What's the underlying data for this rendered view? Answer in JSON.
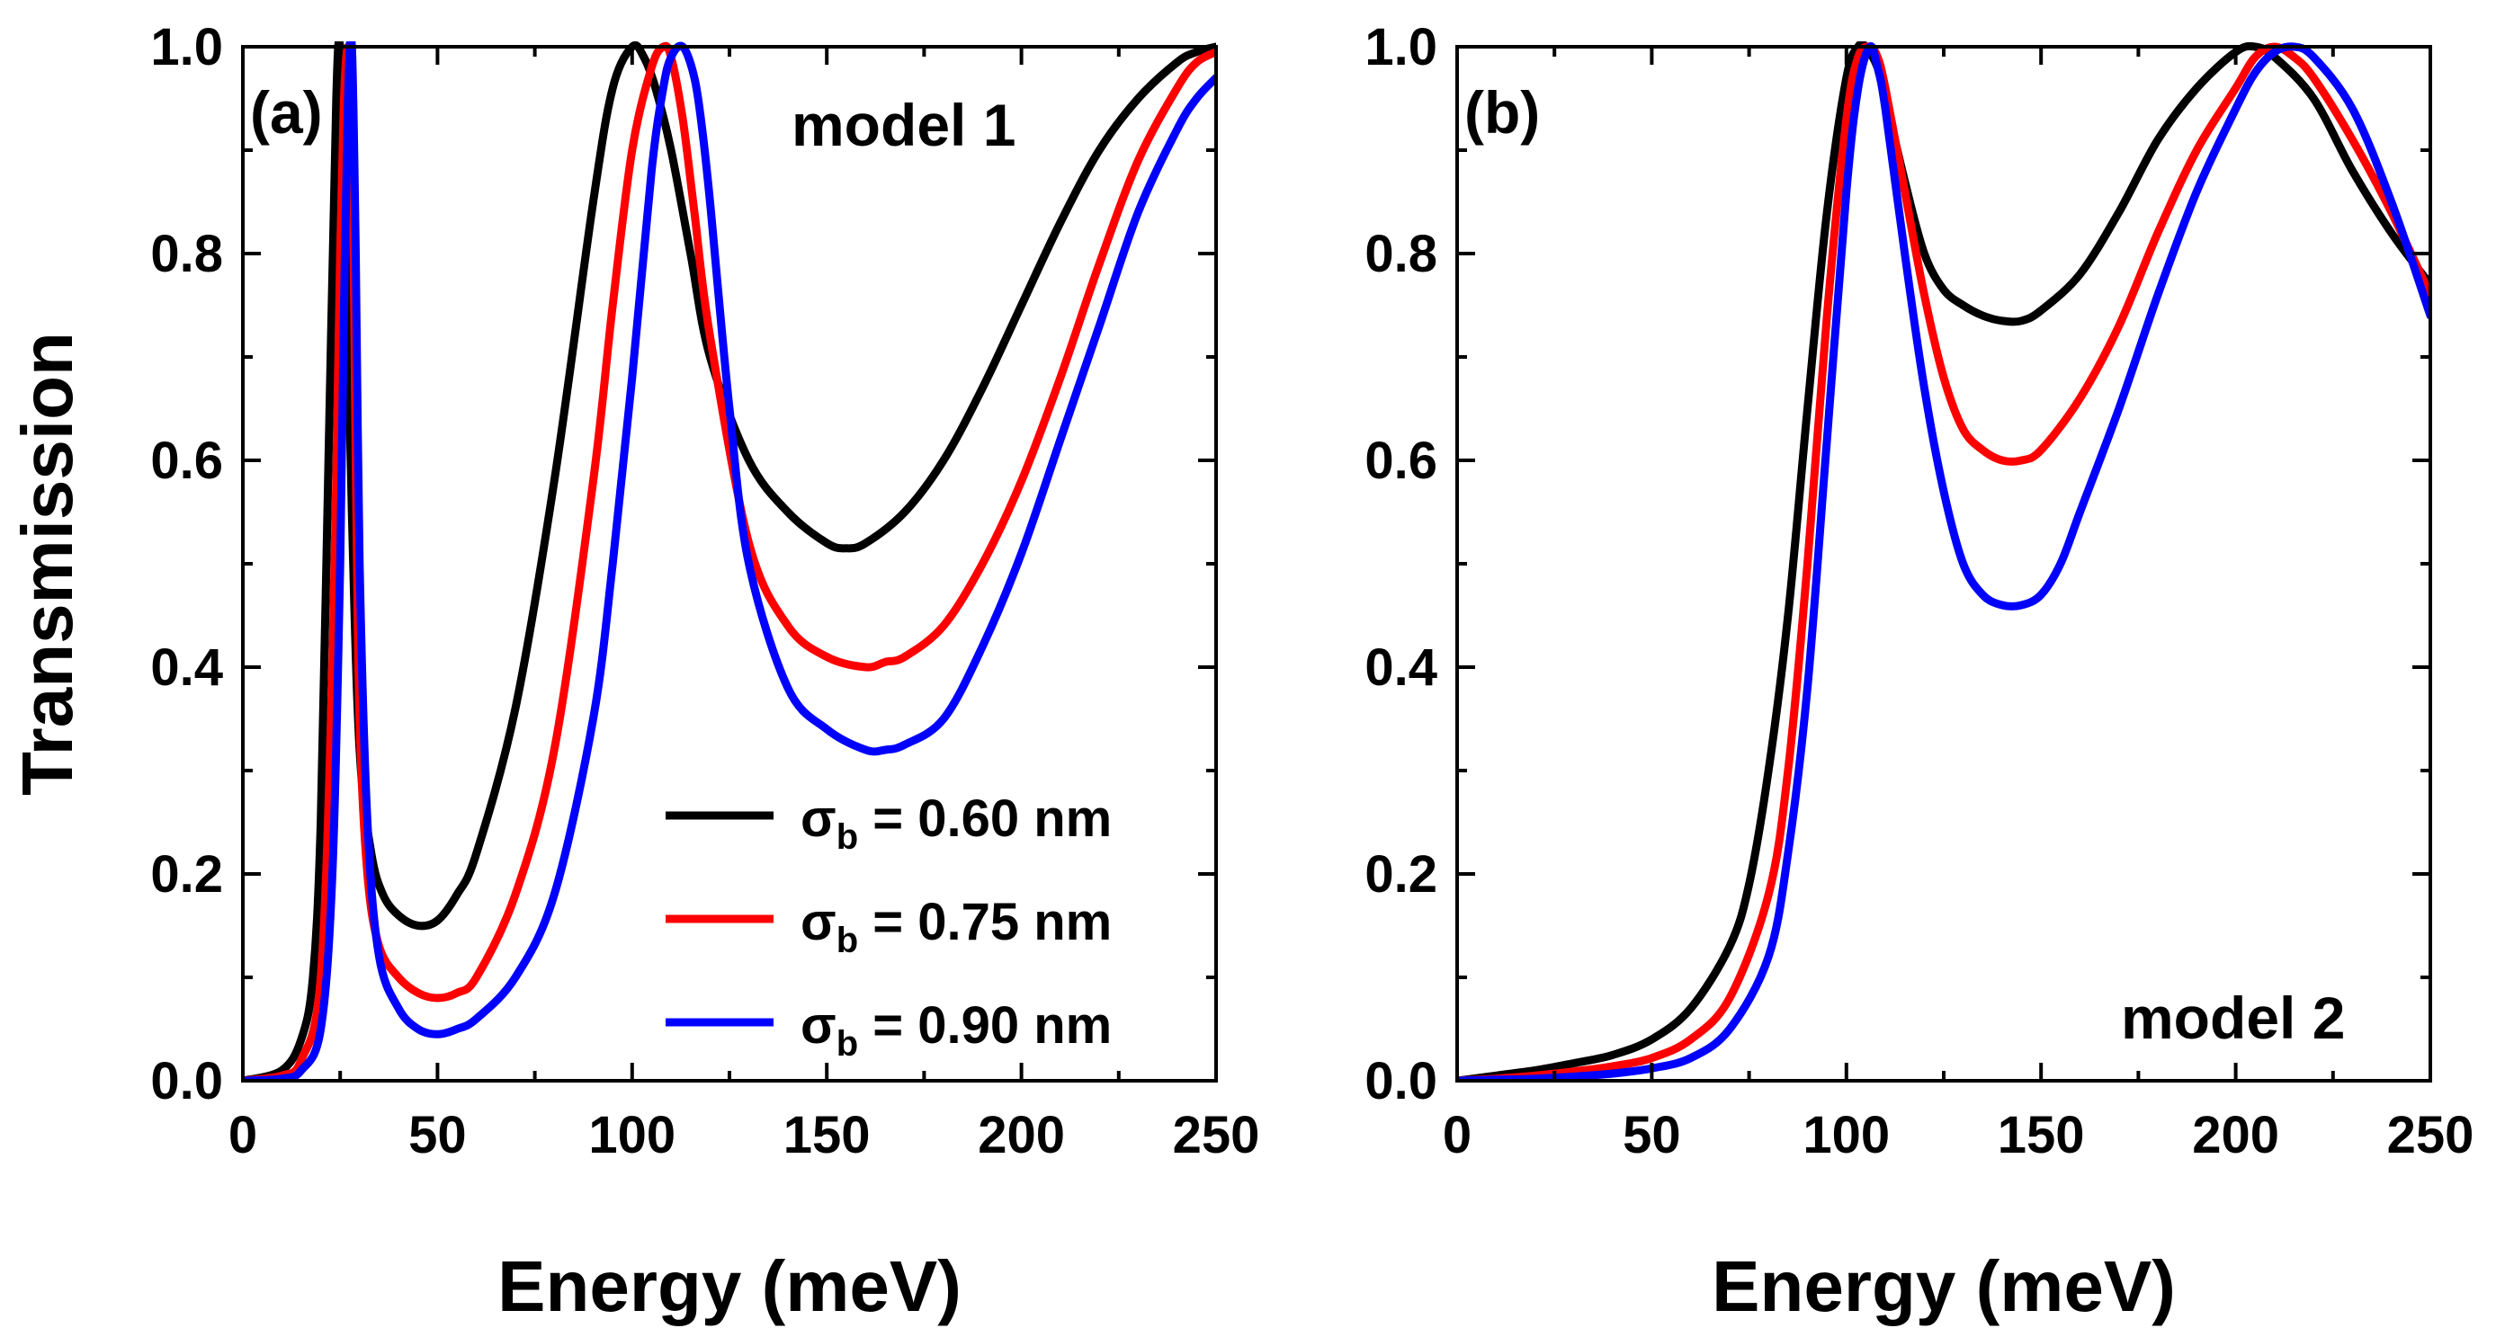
{
  "chart_data": [
    {
      "type": "line",
      "panel_label": "(a)",
      "annotation": "model 1",
      "xlabel": "Energy (meV)",
      "ylabel": "Transmission",
      "xlim": [
        0,
        250
      ],
      "ylim": [
        0,
        1.0
      ],
      "x_ticks": [
        "0",
        "50",
        "100",
        "150",
        "200",
        "250"
      ],
      "y_ticks": [
        "0.0",
        "0.2",
        "0.4",
        "0.6",
        "0.8",
        "1.0"
      ],
      "legend": {
        "placement": "lower-right",
        "entries": [
          {
            "symbol": "σ",
            "sub": "b",
            "text": " = 0.60 nm"
          },
          {
            "symbol": "σ",
            "sub": "b",
            "text": " = 0.75 nm"
          },
          {
            "symbol": "σ",
            "sub": "b",
            "text": " = 0.90 nm"
          }
        ]
      },
      "series": [
        {
          "name": "σb = 0.60 nm",
          "color": "#000000",
          "x": [
            0,
            10,
            15,
            18,
            20,
            22,
            24,
            25,
            26,
            28,
            30,
            33,
            36,
            40,
            45,
            50,
            55,
            60,
            70,
            80,
            90,
            95,
            100,
            103,
            106,
            110,
            115,
            120,
            130,
            140,
            150,
            155,
            160,
            170,
            180,
            190,
            200,
            210,
            220,
            230,
            240,
            245,
            250
          ],
          "y": [
            0,
            0.01,
            0.04,
            0.1,
            0.25,
            0.6,
            0.95,
            1.0,
            0.9,
            0.55,
            0.32,
            0.22,
            0.18,
            0.16,
            0.15,
            0.155,
            0.18,
            0.22,
            0.36,
            0.58,
            0.85,
            0.96,
            1.0,
            0.99,
            0.96,
            0.9,
            0.8,
            0.7,
            0.6,
            0.55,
            0.52,
            0.515,
            0.52,
            0.55,
            0.6,
            0.67,
            0.75,
            0.83,
            0.9,
            0.95,
            0.985,
            0.995,
            1.0
          ]
        },
        {
          "name": "σb = 0.75 nm",
          "color": "#ff0000",
          "x": [
            0,
            10,
            15,
            20,
            23,
            25,
            26,
            27,
            28,
            29,
            30,
            32,
            35,
            40,
            45,
            50,
            55,
            60,
            70,
            80,
            90,
            95,
            100,
            105,
            108,
            110,
            113,
            116,
            120,
            130,
            140,
            150,
            160,
            165,
            170,
            180,
            190,
            200,
            210,
            220,
            230,
            240,
            245,
            250
          ],
          "y": [
            0,
            0.005,
            0.02,
            0.1,
            0.4,
            0.8,
            0.95,
            1.0,
            0.95,
            0.6,
            0.35,
            0.2,
            0.13,
            0.1,
            0.085,
            0.08,
            0.085,
            0.1,
            0.18,
            0.32,
            0.58,
            0.75,
            0.9,
            0.98,
            1.0,
            0.99,
            0.93,
            0.84,
            0.72,
            0.52,
            0.44,
            0.41,
            0.4,
            0.405,
            0.41,
            0.44,
            0.5,
            0.58,
            0.68,
            0.79,
            0.89,
            0.96,
            0.985,
            0.995
          ]
        },
        {
          "name": "σb = 0.90 nm",
          "color": "#0000ff",
          "x": [
            0,
            10,
            15,
            20,
            23,
            25,
            26,
            27,
            28,
            29,
            30,
            32,
            35,
            40,
            45,
            50,
            55,
            60,
            70,
            80,
            90,
            95,
            100,
            105,
            108,
            110,
            113,
            116,
            118,
            120,
            125,
            130,
            140,
            150,
            160,
            165,
            170,
            180,
            190,
            200,
            210,
            220,
            230,
            240,
            245,
            250
          ],
          "y": [
            0,
            0.002,
            0.01,
            0.05,
            0.2,
            0.5,
            0.75,
            0.95,
            1.0,
            0.8,
            0.5,
            0.25,
            0.12,
            0.07,
            0.05,
            0.045,
            0.05,
            0.06,
            0.1,
            0.18,
            0.35,
            0.5,
            0.68,
            0.88,
            0.96,
            0.99,
            1.0,
            0.97,
            0.92,
            0.85,
            0.65,
            0.5,
            0.38,
            0.34,
            0.32,
            0.32,
            0.325,
            0.35,
            0.42,
            0.51,
            0.62,
            0.73,
            0.84,
            0.92,
            0.95,
            0.97
          ]
        }
      ]
    },
    {
      "type": "line",
      "panel_label": "(b)",
      "annotation": "model 2",
      "xlabel": "Energy (meV)",
      "ylabel": "",
      "xlim": [
        0,
        250
      ],
      "ylim": [
        0,
        1.0
      ],
      "x_ticks": [
        "0",
        "50",
        "100",
        "150",
        "200",
        "250"
      ],
      "y_ticks": [
        "0.0",
        "0.2",
        "0.4",
        "0.6",
        "0.8",
        "1.0"
      ],
      "series": [
        {
          "name": "σb = 0.60 nm",
          "color": "#000000",
          "x": [
            0,
            10,
            20,
            30,
            40,
            50,
            60,
            70,
            75,
            80,
            85,
            90,
            95,
            100,
            103,
            105,
            108,
            110,
            115,
            120,
            125,
            130,
            135,
            140,
            145,
            150,
            160,
            170,
            180,
            190,
            200,
            205,
            210,
            220,
            230,
            240,
            250
          ],
          "y": [
            0,
            0.005,
            0.01,
            0.017,
            0.025,
            0.04,
            0.07,
            0.13,
            0.19,
            0.3,
            0.45,
            0.65,
            0.84,
            0.97,
            1.0,
            1.0,
            0.98,
            0.95,
            0.87,
            0.8,
            0.765,
            0.75,
            0.74,
            0.735,
            0.735,
            0.745,
            0.78,
            0.84,
            0.91,
            0.96,
            0.995,
            1.0,
            0.99,
            0.95,
            0.88,
            0.82,
            0.77
          ]
        },
        {
          "name": "σb = 0.75 nm",
          "color": "#ff0000",
          "x": [
            0,
            10,
            20,
            30,
            40,
            50,
            60,
            70,
            80,
            85,
            90,
            95,
            100,
            103,
            106,
            108,
            110,
            115,
            120,
            125,
            130,
            135,
            140,
            145,
            150,
            160,
            170,
            180,
            190,
            200,
            205,
            210,
            215,
            220,
            230,
            240,
            250
          ],
          "y": [
            0,
            0.002,
            0.005,
            0.009,
            0.014,
            0.022,
            0.04,
            0.08,
            0.18,
            0.3,
            0.5,
            0.74,
            0.93,
            0.99,
            1.0,
            0.99,
            0.96,
            0.86,
            0.76,
            0.68,
            0.63,
            0.61,
            0.6,
            0.6,
            0.61,
            0.66,
            0.73,
            0.82,
            0.9,
            0.96,
            0.99,
            1.0,
            0.99,
            0.97,
            0.91,
            0.84,
            0.76
          ]
        },
        {
          "name": "σb = 0.90 nm",
          "color": "#0000ff",
          "x": [
            0,
            10,
            20,
            30,
            40,
            50,
            60,
            70,
            80,
            85,
            90,
            95,
            100,
            103,
            106,
            108,
            110,
            115,
            120,
            125,
            130,
            135,
            140,
            145,
            150,
            155,
            160,
            170,
            180,
            190,
            200,
            205,
            210,
            215,
            220,
            230,
            240,
            250
          ],
          "y": [
            0,
            0.001,
            0.002,
            0.004,
            0.007,
            0.012,
            0.022,
            0.05,
            0.12,
            0.22,
            0.38,
            0.62,
            0.86,
            0.96,
            1.0,
            0.98,
            0.94,
            0.8,
            0.67,
            0.57,
            0.5,
            0.47,
            0.46,
            0.46,
            0.47,
            0.5,
            0.55,
            0.65,
            0.76,
            0.86,
            0.94,
            0.975,
            0.995,
            1.0,
            0.99,
            0.94,
            0.85,
            0.74
          ]
        }
      ]
    }
  ]
}
